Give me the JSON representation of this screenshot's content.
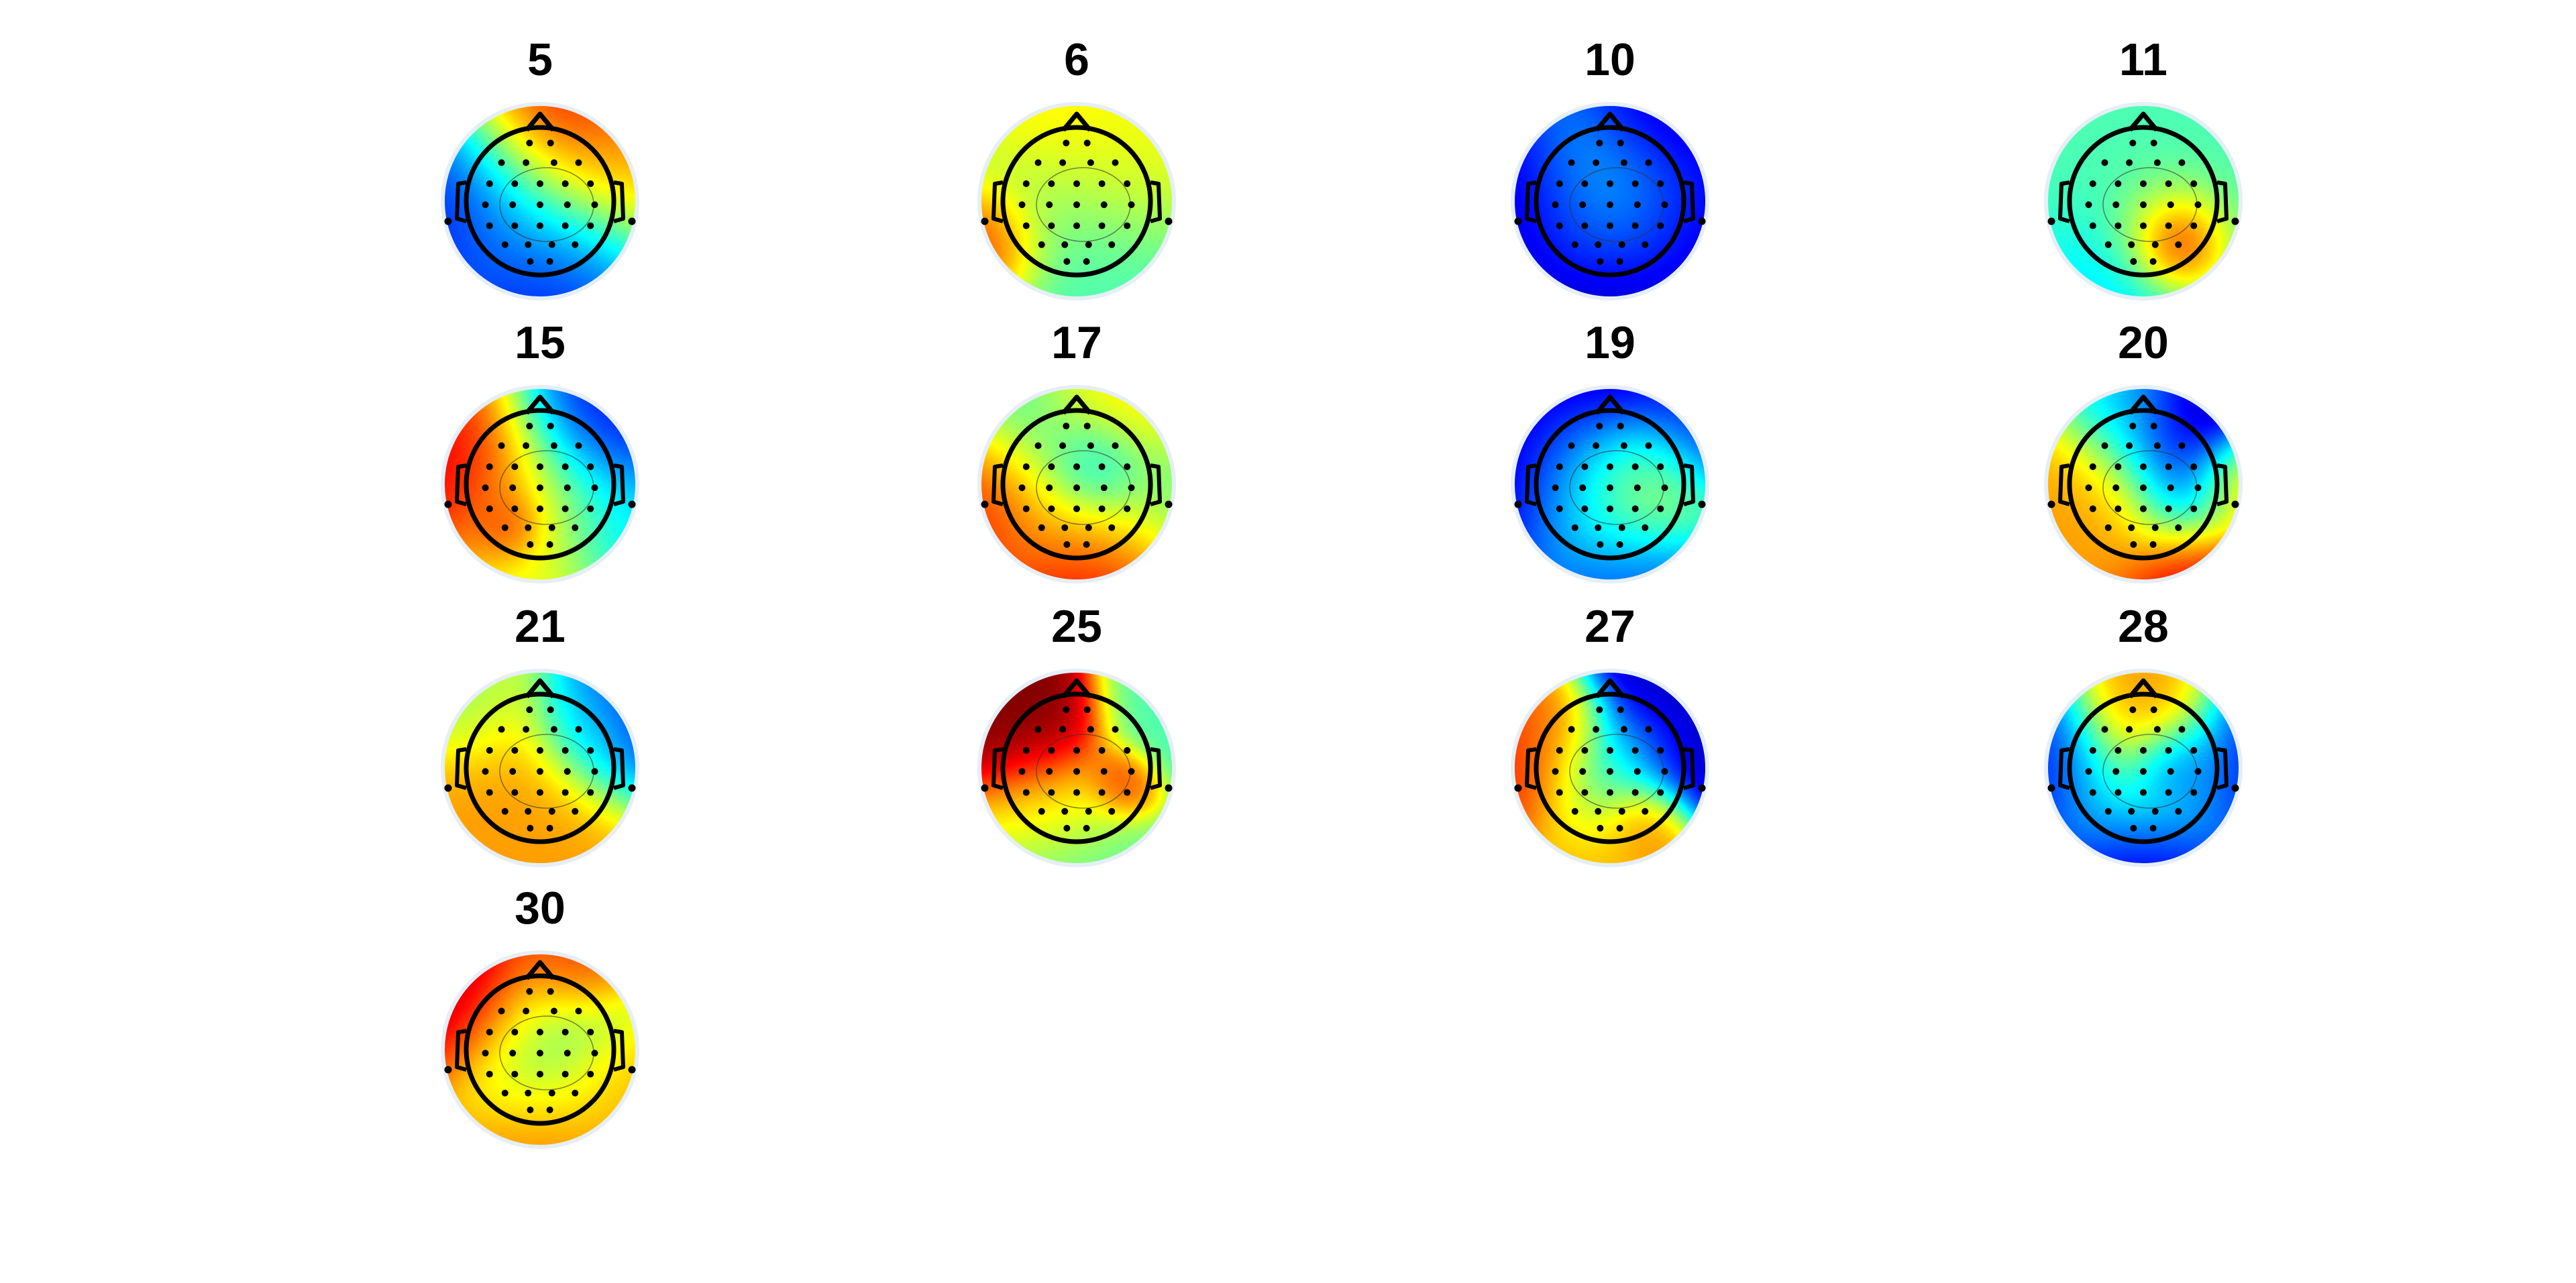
{
  "figure": {
    "colormap": "jet",
    "head_outline_color": "#000000",
    "electrode_color": "#000000",
    "components": [
      {
        "label": "5",
        "pattern": "frontal red, lateral/posterior blue, central green",
        "blobs": [
          [
            0.3,
            -0.95,
            1.0,
            0.55
          ],
          [
            1.0,
            -0.5,
            0.75,
            0.5
          ],
          [
            -1.0,
            0.1,
            0.05,
            0.55
          ],
          [
            0.0,
            1.0,
            0.05,
            0.6
          ],
          [
            0.0,
            0.0,
            0.45,
            0.9
          ]
        ]
      },
      {
        "label": "6",
        "pattern": "mostly green, yellow frontal, red lower-left edge",
        "blobs": [
          [
            -0.2,
            -0.8,
            0.7,
            0.6
          ],
          [
            0.7,
            -0.5,
            0.65,
            0.5
          ],
          [
            -1.0,
            0.45,
            0.95,
            0.35
          ],
          [
            0.0,
            0.2,
            0.45,
            0.9
          ]
        ]
      },
      {
        "label": "10",
        "pattern": "blue periphery, cyan center",
        "blobs": [
          [
            0.0,
            0.0,
            0.4,
            0.6
          ],
          [
            -0.95,
            0.1,
            0.05,
            0.55
          ],
          [
            0.0,
            1.0,
            0.02,
            0.65
          ],
          [
            0.6,
            -0.8,
            0.05,
            0.5
          ],
          [
            0.95,
            0.3,
            0.08,
            0.5
          ]
        ]
      },
      {
        "label": "11",
        "pattern": "green, focal red right-posterior",
        "blobs": [
          [
            0.35,
            0.45,
            1.0,
            0.22
          ],
          [
            0.3,
            0.4,
            0.8,
            0.35
          ],
          [
            0.0,
            0.0,
            0.45,
            1.0
          ],
          [
            -0.4,
            1.0,
            0.3,
            0.5
          ]
        ]
      },
      {
        "label": "15",
        "pattern": "red left, blue right",
        "blobs": [
          [
            -1.0,
            -0.2,
            1.0,
            0.55
          ],
          [
            -0.35,
            0.4,
            0.85,
            0.2
          ],
          [
            1.0,
            -0.6,
            0.05,
            0.55
          ],
          [
            0.6,
            -0.9,
            0.05,
            0.45
          ],
          [
            0.0,
            0.1,
            0.6,
            0.9
          ],
          [
            1.0,
            0.5,
            0.3,
            0.4
          ]
        ]
      },
      {
        "label": "17",
        "pattern": "green center, red posterior and left",
        "blobs": [
          [
            0.0,
            1.0,
            1.0,
            0.55
          ],
          [
            -1.0,
            0.3,
            0.95,
            0.45
          ],
          [
            0.5,
            -0.9,
            0.7,
            0.45
          ],
          [
            0.0,
            0.0,
            0.45,
            0.85
          ],
          [
            0.2,
            -0.2,
            0.35,
            0.25
          ]
        ]
      },
      {
        "label": "19",
        "pattern": "blue periphery, yellow right-center",
        "blobs": [
          [
            0.35,
            0.0,
            0.65,
            0.4
          ],
          [
            -0.1,
            0.0,
            0.45,
            0.55
          ],
          [
            -1.0,
            -0.2,
            0.05,
            0.6
          ],
          [
            0.0,
            -1.0,
            0.05,
            0.55
          ],
          [
            0.9,
            -0.6,
            0.15,
            0.4
          ],
          [
            0.2,
            1.0,
            0.2,
            0.5
          ]
        ]
      },
      {
        "label": "20",
        "pattern": "dark blue frontal-right, yellow left and posterior",
        "blobs": [
          [
            0.35,
            -0.7,
            0.0,
            0.5
          ],
          [
            0.6,
            0.0,
            0.15,
            0.4
          ],
          [
            -0.5,
            0.1,
            0.72,
            0.55
          ],
          [
            0.7,
            0.9,
            0.9,
            0.45
          ],
          [
            1.0,
            0.0,
            0.9,
            0.3
          ],
          [
            -0.2,
            -0.9,
            0.4,
            0.4
          ]
        ]
      },
      {
        "label": "21",
        "pattern": "yellow, blue right-frontal edge",
        "blobs": [
          [
            1.0,
            -0.6,
            0.05,
            0.5
          ],
          [
            0.6,
            -0.5,
            0.35,
            0.35
          ],
          [
            -0.3,
            0.4,
            0.72,
            0.8
          ],
          [
            -0.8,
            -0.7,
            0.5,
            0.4
          ]
        ]
      },
      {
        "label": "25",
        "pattern": "red left-frontal, orange spots, green periphery",
        "blobs": [
          [
            -0.45,
            -0.45,
            1.0,
            0.4
          ],
          [
            0.45,
            0.15,
            0.85,
            0.2
          ],
          [
            -0.2,
            0.4,
            0.7,
            0.4
          ],
          [
            0.9,
            -0.6,
            0.45,
            0.4
          ],
          [
            0.0,
            0.9,
            0.45,
            0.45
          ]
        ]
      },
      {
        "label": "27",
        "pattern": "mixed red/yellow/blue patches",
        "blobs": [
          [
            -0.9,
            0.0,
            0.85,
            0.4
          ],
          [
            0.9,
            0.0,
            0.05,
            0.35
          ],
          [
            0.45,
            -0.8,
            0.05,
            0.45
          ],
          [
            0.0,
            0.0,
            0.4,
            0.45
          ],
          [
            0.0,
            0.9,
            0.7,
            0.45
          ],
          [
            -0.55,
            -0.5,
            0.8,
            0.3
          ],
          [
            0.4,
            0.6,
            0.8,
            0.25
          ]
        ]
      },
      {
        "label": "28",
        "pattern": "green center, blue periphery, orange frontal",
        "blobs": [
          [
            0.0,
            -0.6,
            0.8,
            0.35
          ],
          [
            0.3,
            0.0,
            0.15,
            0.25
          ],
          [
            0.0,
            1.0,
            0.05,
            0.5
          ],
          [
            -1.0,
            0.0,
            0.1,
            0.45
          ],
          [
            1.0,
            0.0,
            0.1,
            0.45
          ],
          [
            0.0,
            0.0,
            0.55,
            0.6
          ]
        ]
      },
      {
        "label": "30",
        "pattern": "red left-frontal, green center, yellow posterior",
        "blobs": [
          [
            -0.8,
            -0.6,
            1.0,
            0.5
          ],
          [
            0.3,
            -0.9,
            0.85,
            0.35
          ],
          [
            0.0,
            -0.1,
            0.45,
            0.55
          ],
          [
            0.0,
            1.0,
            0.75,
            0.55
          ],
          [
            0.9,
            0.4,
            0.7,
            0.4
          ]
        ]
      }
    ]
  }
}
